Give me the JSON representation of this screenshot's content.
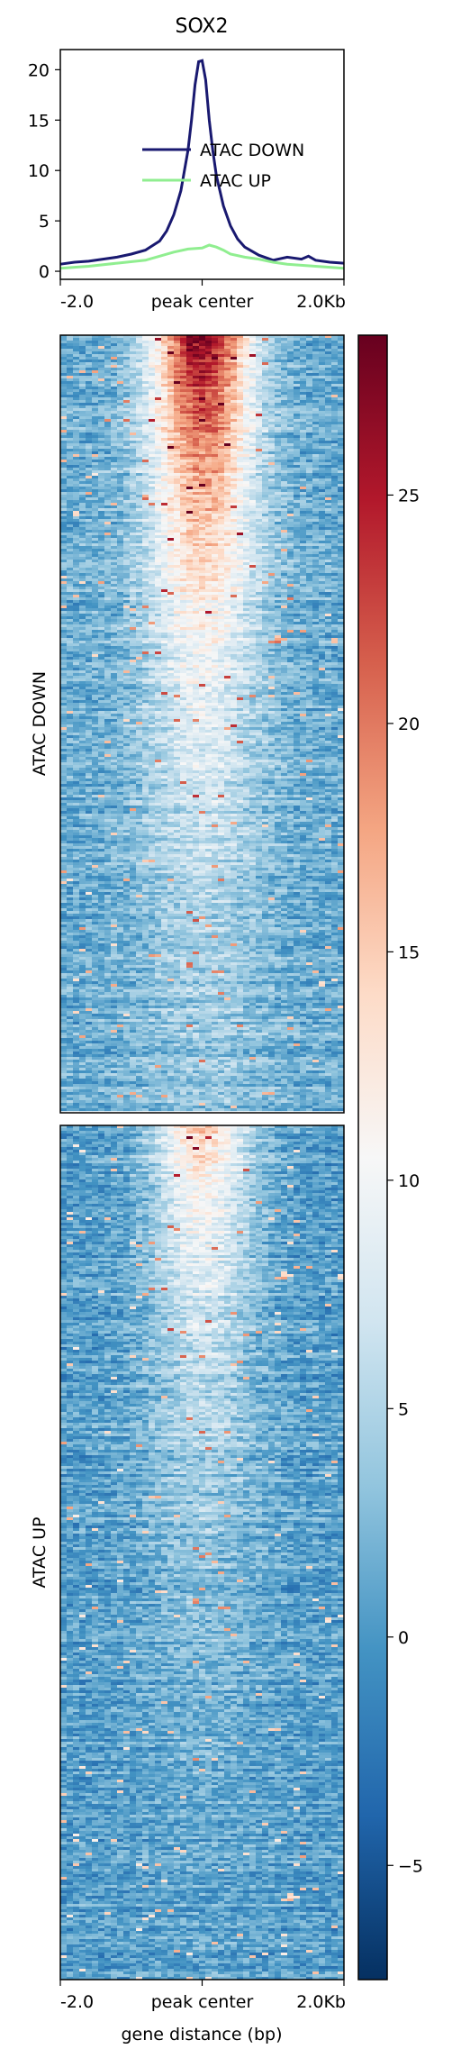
{
  "chart_data": {
    "type": "heatmap",
    "title": "SOX2",
    "profile": {
      "type": "line",
      "x_ticks": [
        "-2.0",
        "peak center",
        "2.0Kb"
      ],
      "x_range_bp": [
        -2000,
        2000
      ],
      "ylim": [
        -0.8,
        22
      ],
      "y_ticks": [
        "0",
        "5",
        "10",
        "15",
        "20"
      ],
      "legend": {
        "placement": "upper-right"
      },
      "series": [
        {
          "name": "ATAC DOWN",
          "color": "#191970",
          "x": [
            -2000,
            -1800,
            -1600,
            -1400,
            -1200,
            -1000,
            -800,
            -600,
            -500,
            -400,
            -300,
            -200,
            -150,
            -100,
            -50,
            0,
            50,
            100,
            150,
            200,
            300,
            400,
            500,
            600,
            800,
            1000,
            1200,
            1400,
            1500,
            1600,
            1800,
            2000
          ],
          "y": [
            0.7,
            0.9,
            1.0,
            1.2,
            1.4,
            1.7,
            2.1,
            3.0,
            4.0,
            5.6,
            8.0,
            12.0,
            15.0,
            18.5,
            20.8,
            20.9,
            19.0,
            15.0,
            12.0,
            9.5,
            6.5,
            4.5,
            3.2,
            2.4,
            1.6,
            1.1,
            1.4,
            1.2,
            1.5,
            1.1,
            0.9,
            0.8
          ]
        },
        {
          "name": "ATAC UP",
          "color": "#90ee90",
          "x": [
            -2000,
            -1600,
            -1200,
            -800,
            -600,
            -400,
            -200,
            0,
            100,
            200,
            300,
            400,
            600,
            800,
            1000,
            1200,
            1600,
            2000
          ],
          "y": [
            0.3,
            0.5,
            0.8,
            1.1,
            1.5,
            1.9,
            2.2,
            2.3,
            2.6,
            2.4,
            2.1,
            1.7,
            1.4,
            1.2,
            0.9,
            0.7,
            0.5,
            0.3
          ]
        }
      ]
    },
    "heatmaps": [
      {
        "name": "ATAC DOWN",
        "x_ticks": [
          "-2.0",
          "peak center",
          "2.0Kb"
        ]
      },
      {
        "name": "ATAC UP",
        "x_ticks": [
          "-2.0",
          "peak center",
          "2.0Kb"
        ],
        "xlabel": "gene distance (bp)"
      }
    ],
    "colorbar": {
      "colormap": "RdBu_r",
      "range": [
        -7.5,
        28.5
      ],
      "ticks": [
        -5,
        0,
        5,
        10,
        15,
        20,
        25
      ],
      "tick_labels": [
        "−5",
        "0",
        "5",
        "10",
        "15",
        "20",
        "25"
      ],
      "colors": [
        "#053061",
        "#2166ac",
        "#4393c3",
        "#92c5de",
        "#d1e5f0",
        "#f7f7f7",
        "#fddbc7",
        "#f4a582",
        "#d6604d",
        "#b2182b",
        "#67001f"
      ]
    }
  }
}
